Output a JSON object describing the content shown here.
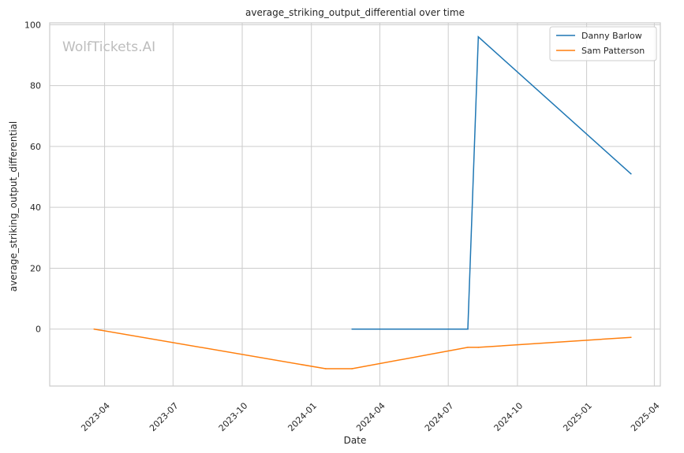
{
  "watermark": "WolfTickets.AI",
  "chart_data": {
    "type": "line",
    "title": "average_striking_output_differential over time",
    "xlabel": "Date",
    "ylabel": "average_striking_output_differential",
    "x_ticks": [
      "2023-04",
      "2023-07",
      "2023-10",
      "2024-01",
      "2024-04",
      "2024-07",
      "2024-10",
      "2025-01",
      "2025-04"
    ],
    "y_ticks": [
      0,
      20,
      40,
      60,
      80,
      100
    ],
    "xlim": [
      "2023-01-18",
      "2025-04-09"
    ],
    "ylim": [
      -18.7,
      100.6
    ],
    "grid": true,
    "legend_position": "top-right",
    "series": [
      {
        "name": "Danny Barlow",
        "color": "#1f77b4",
        "points": [
          {
            "x": "2024-02-24",
            "y": 0
          },
          {
            "x": "2024-07-27",
            "y": 0
          },
          {
            "x": "2024-08-10",
            "y": 96
          },
          {
            "x": "2025-03-01",
            "y": 51
          }
        ]
      },
      {
        "name": "Sam Patterson",
        "color": "#ff7f0e",
        "points": [
          {
            "x": "2023-03-18",
            "y": 0
          },
          {
            "x": "2024-01-20",
            "y": -13
          },
          {
            "x": "2024-02-24",
            "y": -13
          },
          {
            "x": "2024-07-27",
            "y": -6
          },
          {
            "x": "2024-08-10",
            "y": -6
          },
          {
            "x": "2025-03-01",
            "y": -2.7
          }
        ]
      }
    ]
  }
}
